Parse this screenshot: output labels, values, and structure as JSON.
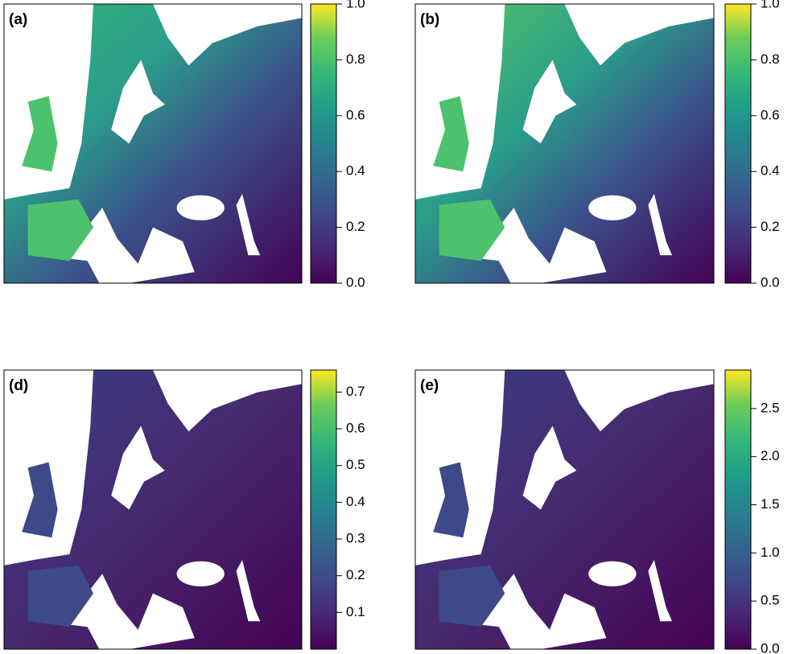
{
  "panels": [
    {
      "label": "(a)",
      "colorbar": {
        "lim": [
          0,
          1
        ],
        "ticks": [
          {
            "value": 0,
            "label": "0.0"
          },
          0.2,
          0.4,
          0.6,
          0.8,
          {
            "value": 1,
            "label": "1.0"
          }
        ]
      }
    },
    {
      "label": "(b)",
      "colorbar": {
        "lim": [
          0,
          1
        ],
        "ticks": [
          {
            "value": 0,
            "label": "0.0"
          },
          0.2,
          0.4,
          0.6,
          0.8,
          {
            "value": 1,
            "label": "1.0"
          }
        ]
      }
    },
    {
      "label": "(d)",
      "colorbar": {
        "lim": [
          0,
          0.76
        ],
        "ticks": [
          0.1,
          0.2,
          0.3,
          0.4,
          0.5,
          0.6,
          0.7
        ]
      }
    },
    {
      "label": "(e)",
      "colorbar": {
        "lim": [
          0,
          2.9
        ],
        "ticks": [
          {
            "value": 0,
            "label": "0.0"
          },
          0.5,
          {
            "value": 1,
            "label": "1.0"
          },
          1.5,
          {
            "value": 2,
            "label": "2.0"
          },
          2.5
        ]
      }
    }
  ]
}
